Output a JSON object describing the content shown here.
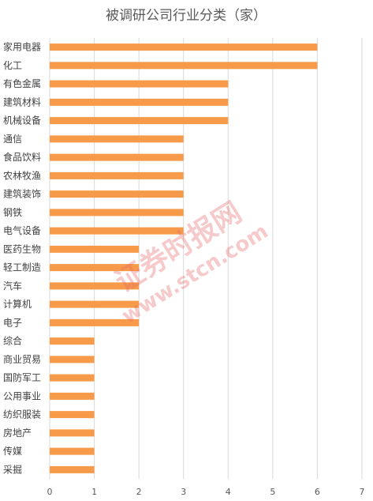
{
  "chart_data": {
    "type": "bar",
    "orientation": "horizontal",
    "title": "被调研公司行业分类（家）",
    "categories": [
      "家用电器",
      "化工",
      "有色金属",
      "建筑材料",
      "机械设备",
      "通信",
      "食品饮料",
      "农林牧渔",
      "建筑装饰",
      "钢铁",
      "电气设备",
      "医药生物",
      "轻工制造",
      "汽车",
      "计算机",
      "电子",
      "综合",
      "商业贸易",
      "国防军工",
      "公用事业",
      "纺织服装",
      "房地产",
      "传媒",
      "采掘"
    ],
    "values": [
      6,
      6,
      4,
      4,
      4,
      3,
      3,
      3,
      3,
      3,
      3,
      2,
      2,
      2,
      2,
      2,
      1,
      1,
      1,
      1,
      1,
      1,
      1,
      1
    ],
    "xlim": [
      0,
      7
    ],
    "xticks": [
      0,
      1,
      2,
      3,
      4,
      5,
      6,
      7
    ],
    "grid": "vertical",
    "legend": "none",
    "bar_color": "#F79A4A",
    "grid_color": "#D9D9D9"
  },
  "watermark": {
    "chinese": "证券时报网",
    "url": "www.stcn.com",
    "color": "#E86A6A"
  }
}
